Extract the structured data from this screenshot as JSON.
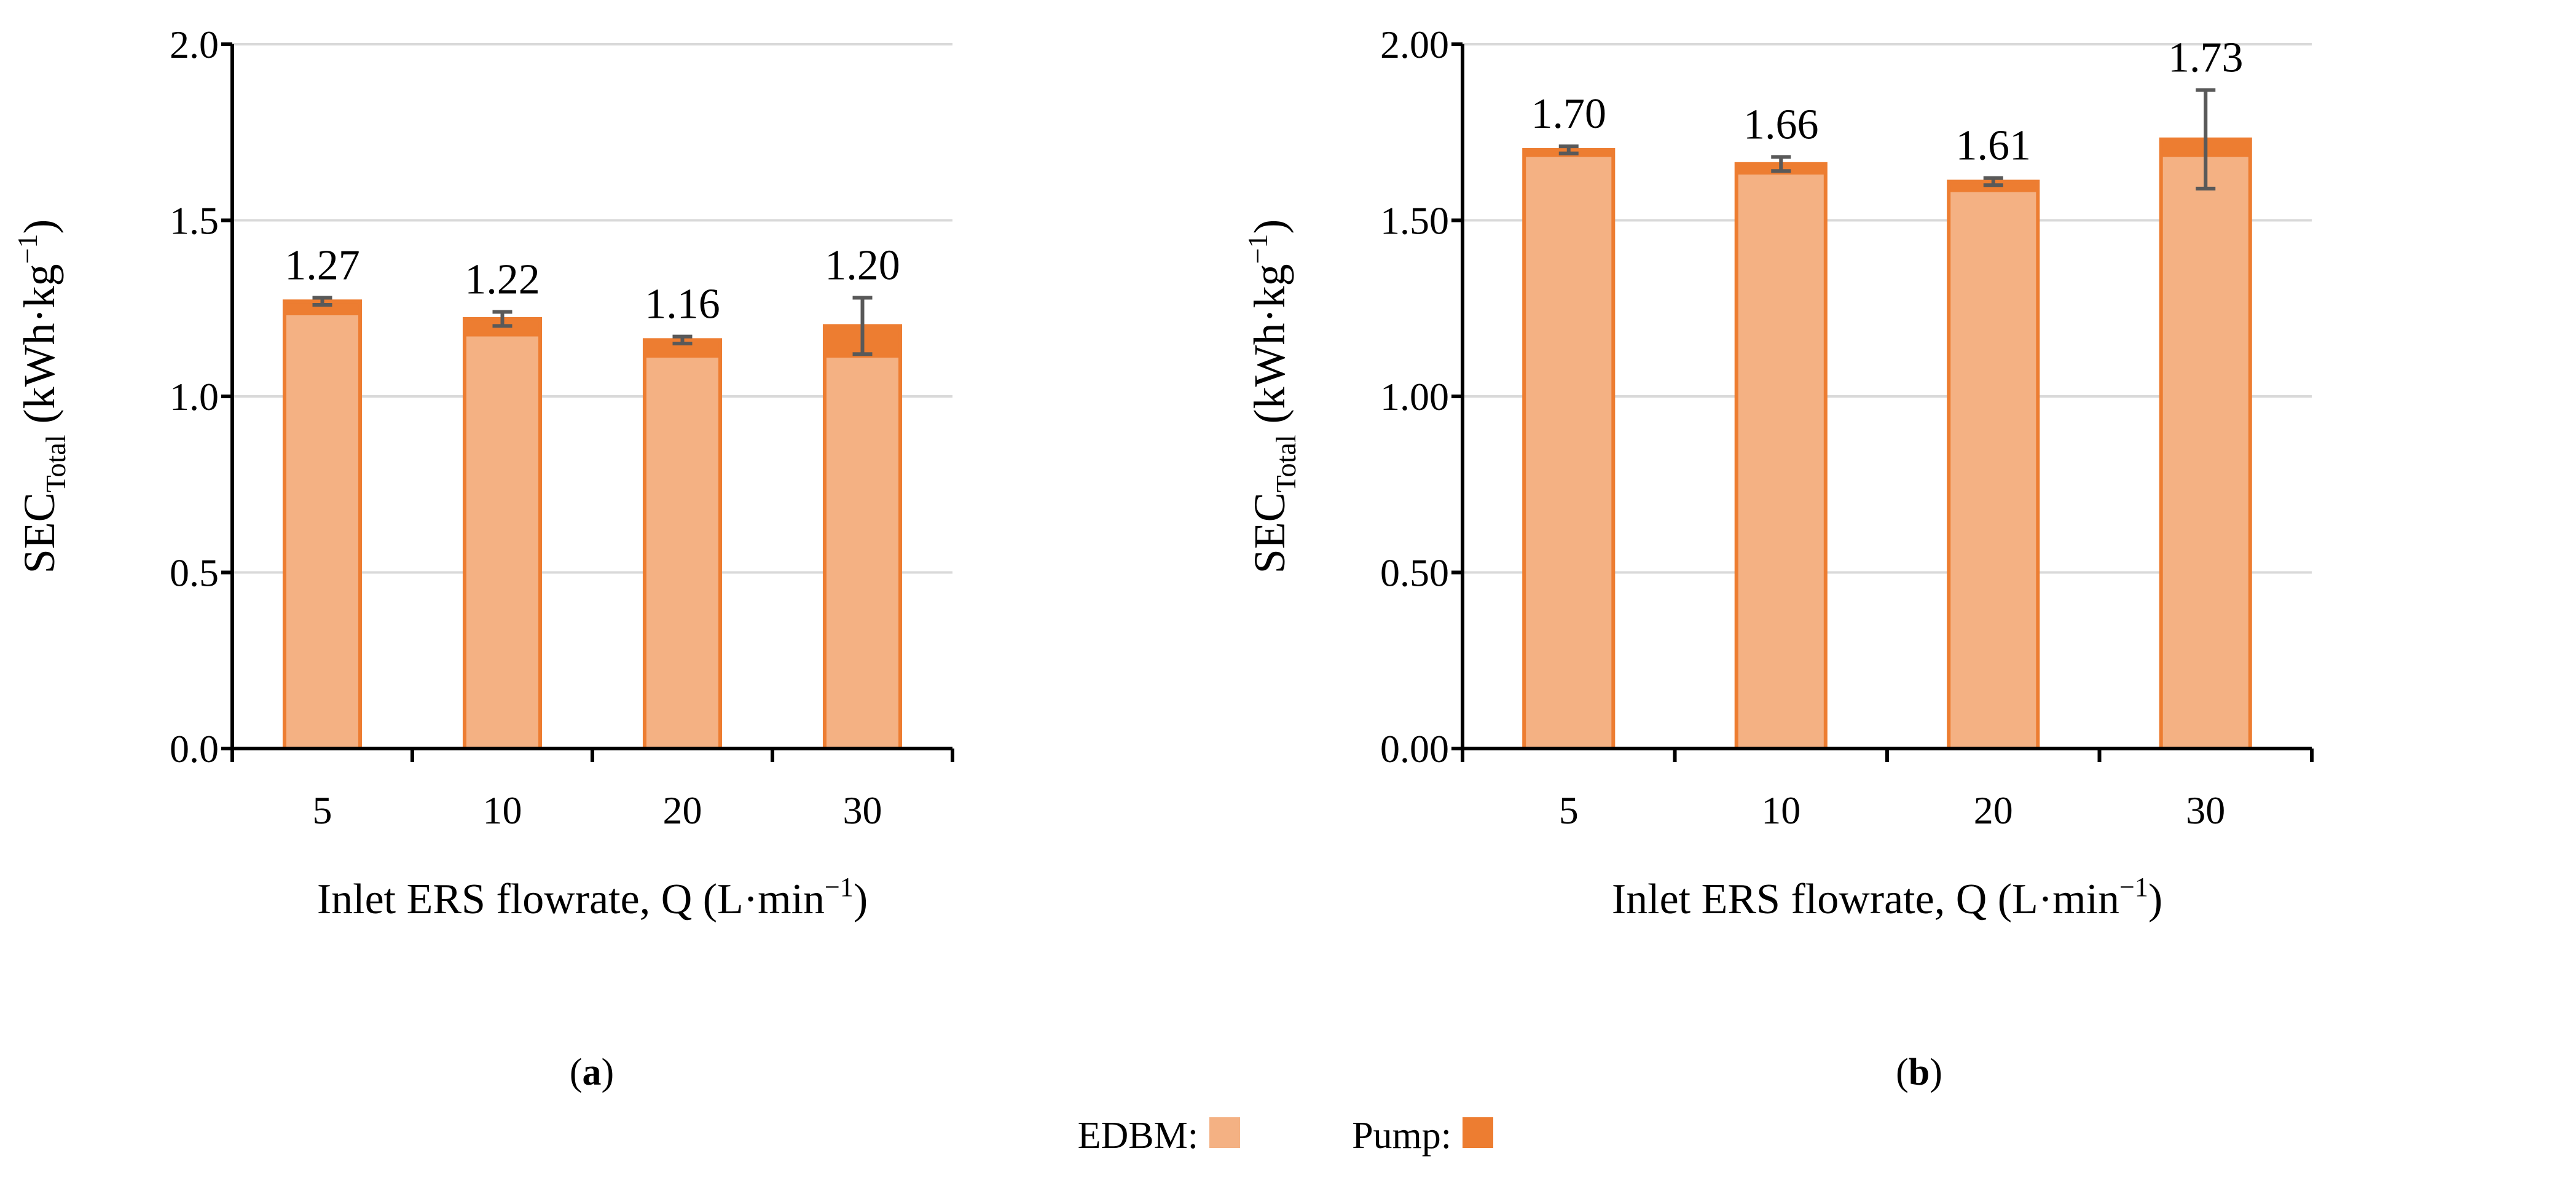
{
  "colors": {
    "edbm": "#F4B183",
    "pump": "#ED7D31",
    "bar_edge": "#ED7D31",
    "error_bar": "#595959",
    "grid": "#D9D9D9",
    "axis": "#000000"
  },
  "chart_data": [
    {
      "type": "bar",
      "stacked": true,
      "panel_label": "a",
      "categories": [
        "5",
        "10",
        "20",
        "30"
      ],
      "series": [
        {
          "name": "EDBM",
          "values": [
            1.23,
            1.17,
            1.11,
            1.11
          ]
        },
        {
          "name": "Pump",
          "values": [
            0.04,
            0.05,
            0.05,
            0.09
          ]
        }
      ],
      "totals": [
        1.27,
        1.22,
        1.16,
        1.2
      ],
      "total_labels": [
        "1.27",
        "1.22",
        "1.16",
        "1.20"
      ],
      "error_bars": [
        0.01,
        0.02,
        0.01,
        0.08
      ],
      "xlabel": "Inlet ERS flowrate, Q (L·min",
      "xlabel_sup": "−1",
      "xlabel_end": ")",
      "ylabel": "SEC",
      "ylabel_sub": "Total",
      "ylabel_unit": " (kWh·kg",
      "ylabel_sup": "−1",
      "ylabel_end": ")",
      "ylim": [
        0,
        2.0
      ],
      "yticks": [
        0,
        0.5,
        1.0,
        1.5,
        2.0
      ],
      "ytick_labels": [
        "0.0",
        "0.5",
        "1.0",
        "1.5",
        "2.0"
      ],
      "grid": true
    },
    {
      "type": "bar",
      "stacked": true,
      "panel_label": "b",
      "categories": [
        "5",
        "10",
        "20",
        "30"
      ],
      "series": [
        {
          "name": "EDBM",
          "values": [
            1.68,
            1.63,
            1.58,
            1.68
          ]
        },
        {
          "name": "Pump",
          "values": [
            0.02,
            0.03,
            0.03,
            0.05
          ]
        }
      ],
      "totals": [
        1.7,
        1.66,
        1.61,
        1.73
      ],
      "total_labels": [
        "1.70",
        "1.66",
        "1.61",
        "1.73"
      ],
      "error_bars": [
        0.01,
        0.02,
        0.01,
        0.14
      ],
      "xlabel": "Inlet ERS flowrate, Q (L·min",
      "xlabel_sup": "−1",
      "xlabel_end": ")",
      "ylabel": "SEC",
      "ylabel_sub": "Total",
      "ylabel_unit": " (kWh·kg",
      "ylabel_sup": "−1",
      "ylabel_end": ")",
      "ylim": [
        0,
        2.0
      ],
      "yticks": [
        0,
        0.5,
        1.0,
        1.5,
        2.0
      ],
      "ytick_labels": [
        "0.00",
        "0.50",
        "1.00",
        "1.50",
        "2.00"
      ],
      "grid": true
    }
  ],
  "legend": {
    "position": "bottom-center",
    "items": [
      {
        "label": "EDBM:",
        "series": "EDBM"
      },
      {
        "label": "Pump:",
        "series": "Pump"
      }
    ]
  }
}
